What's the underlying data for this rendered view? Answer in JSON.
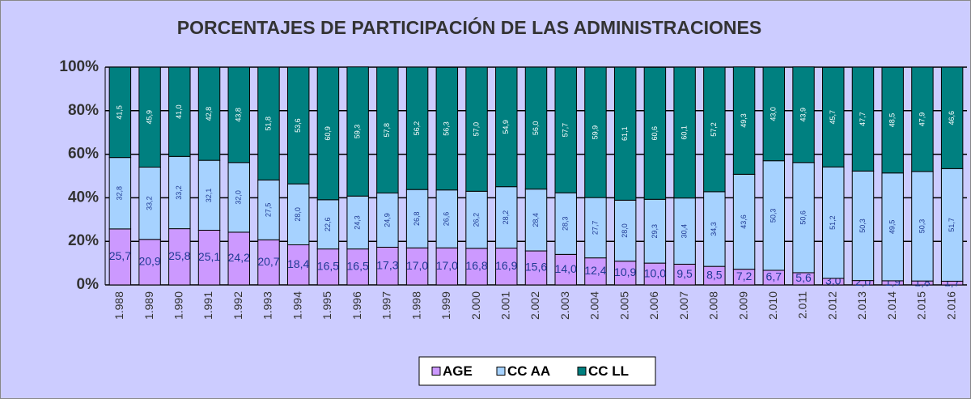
{
  "chart_data": {
    "type": "stacked_bar_100",
    "title": "PORCENTAJES DE PARTICIPACIÓN DE LAS ADMINISTRACIONES",
    "categories": [
      "1.988",
      "1.989",
      "1.990",
      "1.991",
      "1.992",
      "1.993",
      "1.994",
      "1.995",
      "1.996",
      "1.997",
      "1.998",
      "1.999",
      "2.000",
      "2.001",
      "2.002",
      "2.003",
      "2.004",
      "2.005",
      "2.006",
      "2.007",
      "2.008",
      "2.009",
      "2.010",
      "2.011",
      "2.012",
      "2.013",
      "2.014",
      "2.015",
      "2.016"
    ],
    "series": [
      {
        "name": "AGE",
        "color": "#cc99ff",
        "values": [
          25.7,
          20.9,
          25.8,
          25.1,
          24.2,
          20.7,
          18.4,
          16.5,
          16.5,
          17.3,
          17.0,
          17.0,
          16.8,
          16.9,
          15.6,
          14.0,
          12.4,
          10.9,
          10.0,
          9.5,
          8.5,
          7.2,
          6.7,
          5.6,
          3.0,
          2.0,
          1.9,
          1.8,
          1.7
        ],
        "value_labels": [
          "25,7",
          "20,9",
          "25,8",
          "25,1",
          "24,2",
          "20,7",
          "18,4",
          "16,5",
          "16,5",
          "17,3",
          "17,0",
          "17,0",
          "16,8",
          "16,9",
          "15,6",
          "14,0",
          "12,4",
          "10,9",
          "10,0",
          "9,5",
          "8,5",
          "7,2",
          "6,7",
          "5,6",
          "3,0",
          "2,0",
          "1,9",
          "1,8",
          "1,7"
        ]
      },
      {
        "name": "CC AA",
        "color": "#a6d2ff",
        "values": [
          32.8,
          33.2,
          33.2,
          32.1,
          32.0,
          27.5,
          28.0,
          22.6,
          24.3,
          24.9,
          26.8,
          26.6,
          26.2,
          28.2,
          28.4,
          28.3,
          27.7,
          28.0,
          29.3,
          30.4,
          34.3,
          43.6,
          50.3,
          50.6,
          51.2,
          50.3,
          49.5,
          50.3,
          51.7
        ],
        "value_labels": [
          "32,8",
          "33,2",
          "33,2",
          "32,1",
          "32,0",
          "27,5",
          "28,0",
          "22,6",
          "24,3",
          "24,9",
          "26,8",
          "26,6",
          "26,2",
          "28,2",
          "28,4",
          "28,3",
          "27,7",
          "28,0",
          "29,3",
          "30,4",
          "34,3",
          "43,6",
          "50,3",
          "50,6",
          "51,2",
          "50,3",
          "49,5",
          "50,3",
          "51,7"
        ]
      },
      {
        "name": "CC LL",
        "color": "#008080",
        "values": [
          41.5,
          45.9,
          41.0,
          42.8,
          43.8,
          51.8,
          53.6,
          60.9,
          59.3,
          57.8,
          56.2,
          56.3,
          57.0,
          54.9,
          56.0,
          57.7,
          59.9,
          61.1,
          60.6,
          60.1,
          57.2,
          49.3,
          43.0,
          43.9,
          45.7,
          47.7,
          48.5,
          47.9,
          46.6
        ],
        "value_labels": [
          "41,5",
          "45,9",
          "41,0",
          "42,8",
          "43,8",
          "51,8",
          "53,6",
          "60,9",
          "59,3",
          "57,8",
          "56,2",
          "56,3",
          "57,0",
          "54,9",
          "56,0",
          "57,7",
          "59,9",
          "61,1",
          "60,6",
          "60,1",
          "57,2",
          "49,3",
          "43,0",
          "43,9",
          "45,7",
          "47,7",
          "48,5",
          "47,9",
          "46,6"
        ]
      }
    ],
    "ylim": [
      0,
      100
    ],
    "yticks": [
      {
        "value": 0,
        "label": "0%"
      },
      {
        "value": 20,
        "label": "20%"
      },
      {
        "value": 40,
        "label": "40%"
      },
      {
        "value": 60,
        "label": "60%"
      },
      {
        "value": 80,
        "label": "80%"
      },
      {
        "value": 100,
        "label": "100%"
      }
    ],
    "grid": true,
    "legend": "bottom"
  }
}
